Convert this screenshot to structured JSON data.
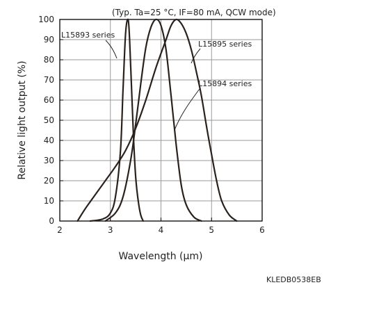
{
  "chart_data": {
    "type": "line",
    "title": "(Typ. Ta=25 °C, IF=80 mA, QCW mode)",
    "xlabel": "Wavelength (μm)",
    "ylabel": "Relative light output (%)",
    "xlim": [
      2,
      6
    ],
    "ylim": [
      0,
      100
    ],
    "xticks": [
      "2",
      "3",
      "4",
      "5",
      "6"
    ],
    "yticks": [
      "0",
      "10",
      "20",
      "30",
      "40",
      "50",
      "60",
      "70",
      "80",
      "90",
      "100"
    ],
    "grid": true,
    "series": [
      {
        "name": "L15893 series",
        "x": [
          2.6,
          2.85,
          3.0,
          3.1,
          3.2,
          3.25,
          3.3,
          3.35,
          3.38,
          3.42,
          3.46,
          3.5,
          3.55,
          3.6,
          3.65
        ],
        "y": [
          0,
          1,
          4,
          12,
          35,
          65,
          93,
          100,
          90,
          65,
          40,
          22,
          10,
          3,
          0
        ]
      },
      {
        "name": "L15894 series",
        "x": [
          2.35,
          2.5,
          2.7,
          2.9,
          3.1,
          3.3,
          3.5,
          3.7,
          3.9,
          4.1,
          4.2,
          4.3,
          4.4,
          4.5,
          4.6,
          4.7,
          4.8,
          4.9,
          5.0,
          5.1,
          5.2,
          5.35,
          5.5
        ],
        "y": [
          0,
          6,
          13,
          20,
          27,
          35,
          46,
          60,
          76,
          90,
          97,
          100,
          98,
          93,
          85,
          74,
          62,
          47,
          33,
          20,
          10,
          3,
          0
        ]
      },
      {
        "name": "L15895 series",
        "x": [
          2.9,
          3.1,
          3.25,
          3.4,
          3.5,
          3.6,
          3.7,
          3.8,
          3.9,
          4.0,
          4.1,
          4.2,
          4.3,
          4.4,
          4.5,
          4.65,
          4.8
        ],
        "y": [
          0,
          4,
          12,
          30,
          48,
          68,
          86,
          96,
          100,
          97,
          85,
          62,
          38,
          18,
          8,
          2,
          0
        ]
      }
    ]
  },
  "figure_code": "KLEDB0538EB"
}
